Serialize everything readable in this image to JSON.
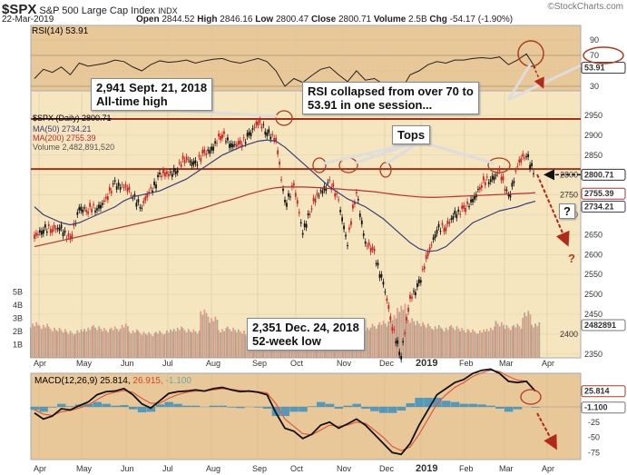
{
  "header": {
    "symbol": "$SPX",
    "name": "S&P 500 Large Cap Index",
    "exchange": "INDX",
    "brand": "©StockCharts.com",
    "date": "22-Mar-2019",
    "quote": [
      {
        "k": "Open",
        "v": "2844.52"
      },
      {
        "k": "High",
        "v": "2846.16"
      },
      {
        "k": "Low",
        "v": "2800.47"
      },
      {
        "k": "Close",
        "v": "2800.71"
      },
      {
        "k": "Volume",
        "v": "2.5B"
      },
      {
        "k": "Chg",
        "v": "-54.17 (-1.90%)"
      }
    ]
  },
  "legend": {
    "rsi": "RSI(14) 53.91",
    "price": "$SPX (Daily) 2800.71",
    "ma50": "MA(50) 2734.21",
    "ma200": "MA(200) 2755.39",
    "volume": "Volume 2,482,891,520",
    "macd": "MACD(12,26,9) 25.814,",
    "macd_signal": "26.915,",
    "macd_hist": "-1.100"
  },
  "right_tags": {
    "rsi": "53.91",
    "close": "2800.71",
    "ma200": "2755.39",
    "ma50": "2734.21",
    "volume": "2482891",
    "macd": "25.814",
    "hist": "-1.100"
  },
  "annotations": {
    "ath_1": "2,941 Sept. 21, 2018",
    "ath_2": "All-time high",
    "rsi_1": "RSI collapsed from over 70 to",
    "rsi_2": "53.91 in one session...",
    "tops": "Tops",
    "low_1": "2,351 Dec. 24, 2018",
    "low_2": "52-week low",
    "q1": "?",
    "q2": "?"
  },
  "colors": {
    "panel": "#e8c899",
    "price_bg": "#f5e6c0",
    "up": "#111111",
    "down": "#cc2222",
    "ma50": "#3a3f7a",
    "ma200": "#b83030",
    "hist": "#3a8fbf",
    "annotation": "#b03a1e"
  },
  "chart_data": {
    "type": "line",
    "title": "$SPX S&P 500 Large Cap Index INDX",
    "x_months": [
      "Apr",
      "May",
      "Jun",
      "Jul",
      "Aug",
      "Sep",
      "Oct",
      "Nov",
      "Dec",
      "2019",
      "Feb",
      "Mar",
      "Apr"
    ],
    "price_axis": {
      "ticks": [
        2950,
        2900,
        2850,
        2800,
        2750,
        2700,
        2650,
        2600,
        2550,
        2500,
        2450,
        2400,
        2350
      ],
      "ylim": [
        2330,
        2970
      ]
    },
    "volume_axis": {
      "ticks": [
        "1B",
        "2B",
        "3B",
        "4B",
        "5B"
      ]
    },
    "rsi_axis": {
      "ticks": [
        90,
        70,
        50,
        30
      ],
      "ylim": [
        5,
        100
      ]
    },
    "macd_axis": {
      "ticks": [
        -25,
        -50,
        -75
      ]
    },
    "weekly_close": [
      2640,
      2670,
      2660,
      2670,
      2630,
      2720,
      2710,
      2720,
      2735,
      2780,
      2770,
      2750,
      2720,
      2760,
      2800,
      2800,
      2820,
      2840,
      2830,
      2850,
      2875,
      2900,
      2880,
      2870,
      2905,
      2930,
      2914,
      2885,
      2730,
      2770,
      2660,
      2720,
      2760,
      2780,
      2735,
      2630,
      2760,
      2630,
      2600,
      2530,
      2416,
      2351,
      2485,
      2530,
      2596,
      2670,
      2664,
      2706,
      2708,
      2740,
      2775,
      2793,
      2805,
      2743,
      2822,
      2855,
      2800.71
    ],
    "ma50": [
      2720,
      2700,
      2690,
      2680,
      2675,
      2680,
      2690,
      2700,
      2710,
      2720,
      2735,
      2745,
      2750,
      2755,
      2760,
      2770,
      2780,
      2790,
      2805,
      2820,
      2835,
      2850,
      2860,
      2870,
      2878,
      2885,
      2888,
      2885,
      2870,
      2850,
      2830,
      2810,
      2790,
      2770,
      2755,
      2740,
      2730,
      2720,
      2705,
      2690,
      2670,
      2650,
      2630,
      2615,
      2608,
      2610,
      2620,
      2640,
      2660,
      2680,
      2690,
      2700,
      2710,
      2715,
      2720,
      2728,
      2734.21
    ],
    "ma200": [
      2620,
      2625,
      2630,
      2635,
      2640,
      2645,
      2650,
      2655,
      2660,
      2665,
      2670,
      2675,
      2680,
      2685,
      2690,
      2695,
      2700,
      2705,
      2712,
      2718,
      2725,
      2732,
      2738,
      2745,
      2752,
      2758,
      2764,
      2768,
      2770,
      2770,
      2770,
      2769,
      2768,
      2766,
      2765,
      2763,
      2762,
      2760,
      2758,
      2755,
      2752,
      2749,
      2747,
      2745,
      2744,
      2744,
      2745,
      2746,
      2747,
      2748,
      2749,
      2750,
      2751,
      2752,
      2753,
      2754,
      2755.39
    ],
    "volume_b": [
      2.5,
      2.4,
      2.2,
      2.1,
      1.9,
      2.0,
      2.2,
      2.3,
      2.1,
      2.2,
      2.4,
      2.0,
      1.9,
      1.8,
      1.9,
      2.0,
      2.2,
      2.1,
      2.0,
      3.4,
      2.9,
      2.1,
      2.2,
      2.0,
      1.7,
      1.8,
      1.9,
      2.0,
      2.5,
      2.4,
      2.3,
      2.0,
      2.1,
      1.8,
      1.9,
      2.0,
      2.3,
      2.2,
      2.4,
      2.6,
      3.0,
      3.8,
      2.9,
      2.6,
      2.4,
      2.3,
      2.2,
      2.3,
      2.1,
      2.0,
      2.0,
      2.2,
      2.6,
      2.3,
      2.4,
      3.3,
      2.5
    ],
    "rsi": [
      40,
      52,
      48,
      55,
      45,
      60,
      56,
      58,
      60,
      64,
      62,
      55,
      50,
      58,
      63,
      61,
      62,
      64,
      60,
      63,
      65,
      66,
      62,
      60,
      63,
      66,
      62,
      50,
      30,
      40,
      35,
      44,
      52,
      55,
      45,
      36,
      50,
      38,
      40,
      33,
      28,
      25,
      45,
      50,
      58,
      62,
      60,
      64,
      64,
      66,
      67,
      66,
      68,
      58,
      64,
      72,
      53.91
    ],
    "macd": [
      -10,
      -20,
      -15,
      -3,
      -5,
      2,
      8,
      20,
      25,
      26,
      30,
      20,
      5,
      -2,
      10,
      22,
      25,
      26,
      28,
      26,
      30,
      32,
      28,
      25,
      26,
      24,
      20,
      -10,
      -35,
      -40,
      -52,
      -45,
      -30,
      -25,
      -35,
      -28,
      -20,
      -30,
      -45,
      -60,
      -75,
      -78,
      -60,
      -30,
      -5,
      20,
      30,
      40,
      45,
      55,
      60,
      62,
      55,
      42,
      40,
      42,
      25.814
    ],
    "signal": [
      -5,
      -12,
      -14,
      -8,
      -6,
      -2,
      3,
      12,
      20,
      24,
      27,
      24,
      14,
      6,
      6,
      14,
      20,
      24,
      26,
      26,
      28,
      30,
      29,
      27,
      26,
      25,
      23,
      5,
      -20,
      -32,
      -44,
      -46,
      -38,
      -30,
      -32,
      -30,
      -25,
      -27,
      -38,
      -50,
      -65,
      -72,
      -66,
      -45,
      -20,
      5,
      20,
      32,
      40,
      50,
      56,
      60,
      58,
      50,
      44,
      42,
      26.915
    ]
  }
}
